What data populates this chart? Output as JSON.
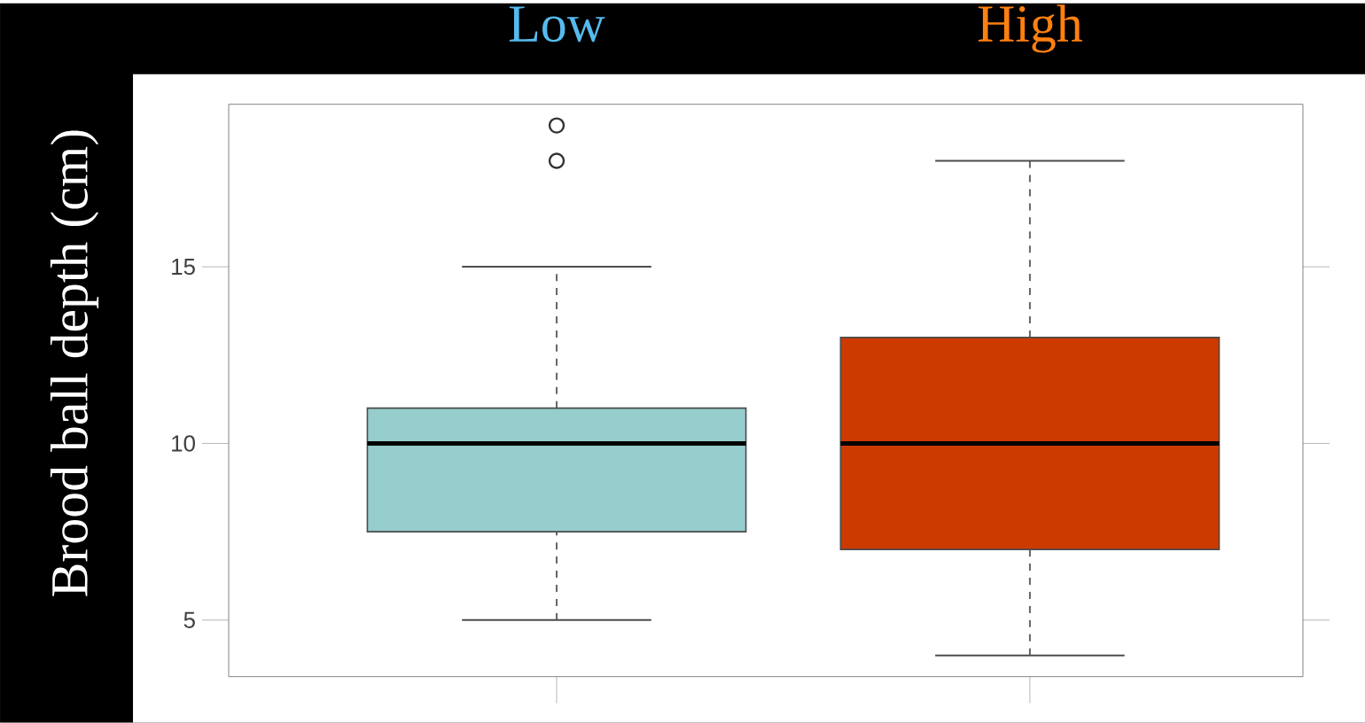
{
  "chart_data": {
    "type": "box",
    "ylabel": "Brood ball depth (cm)",
    "categories": [
      "Low",
      "High"
    ],
    "colors": [
      "#96cdcd",
      "#cc3a00"
    ],
    "boxes": [
      {
        "low": 5,
        "q1": 7.5,
        "median": 10,
        "q3": 11,
        "high": 15,
        "outliers": [
          18,
          19
        ]
      },
      {
        "low": 4,
        "q1": 7,
        "median": 10,
        "q3": 13,
        "high": 18
      }
    ],
    "ylim": [
      3.4,
      19.6
    ],
    "yticks": [
      5,
      10,
      15
    ]
  }
}
